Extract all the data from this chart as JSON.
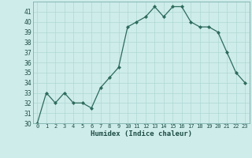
{
  "x": [
    0,
    1,
    2,
    3,
    4,
    5,
    6,
    7,
    8,
    9,
    10,
    11,
    12,
    13,
    14,
    15,
    16,
    17,
    18,
    19,
    20,
    21,
    22,
    23
  ],
  "y": [
    30,
    33,
    32,
    33,
    32,
    32,
    31.5,
    33.5,
    34.5,
    35.5,
    39.5,
    40,
    40.5,
    41.5,
    40.5,
    41.5,
    41.5,
    40,
    39.5,
    39.5,
    39,
    37,
    35,
    34
  ],
  "xlabel": "Humidex (Indice chaleur)",
  "ylim": [
    30,
    42
  ],
  "xlim": [
    -0.5,
    23.5
  ],
  "yticks": [
    30,
    31,
    32,
    33,
    34,
    35,
    36,
    37,
    38,
    39,
    40,
    41
  ],
  "xticks": [
    0,
    1,
    2,
    3,
    4,
    5,
    6,
    7,
    8,
    9,
    10,
    11,
    12,
    13,
    14,
    15,
    16,
    17,
    18,
    19,
    20,
    21,
    22,
    23
  ],
  "line_color": "#2d6b5c",
  "marker_color": "#2d6b5c",
  "bg_color": "#ceecea",
  "grid_color": "#afd8d4",
  "axes_bg": "#ceecea",
  "tick_color": "#1e4d45",
  "label_color": "#1e4d45"
}
